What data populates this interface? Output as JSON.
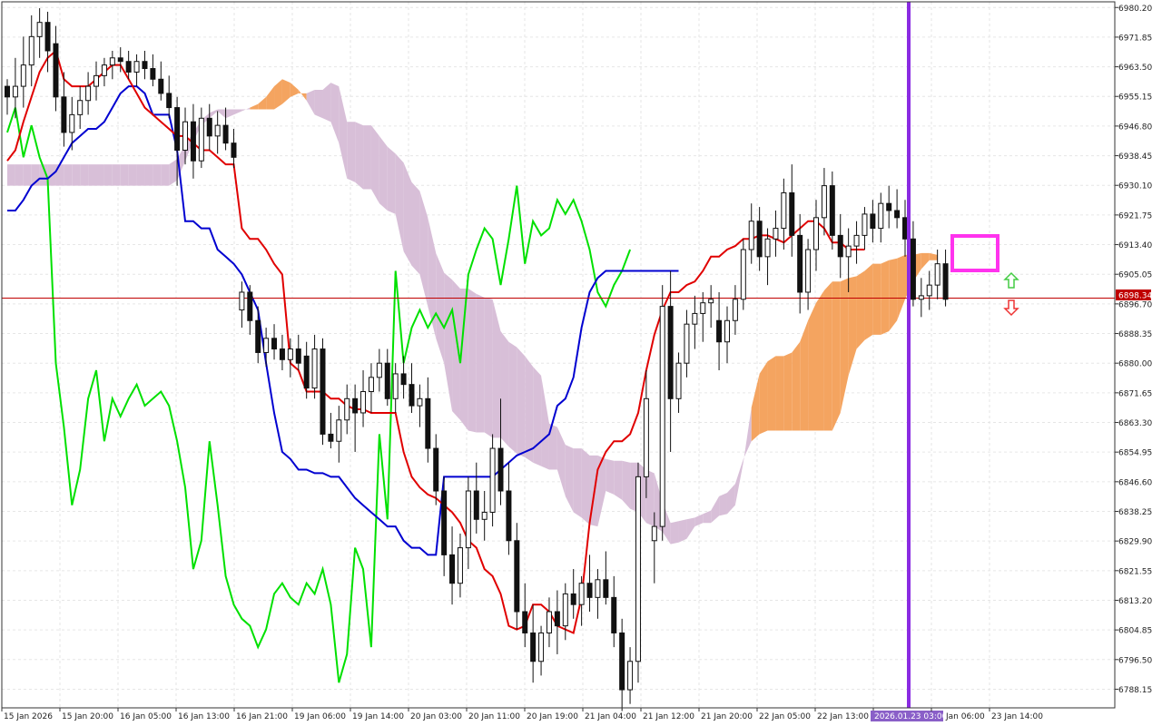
{
  "chart_data": {
    "type": "candlestick",
    "y_axis": {
      "ticks": [
        "6980.20",
        "6971.85",
        "6963.50",
        "6955.15",
        "6946.80",
        "6938.45",
        "6930.10",
        "6921.75",
        "6913.40",
        "6905.05",
        "6896.70",
        "6888.35",
        "6880.00",
        "6871.65",
        "6863.30",
        "6854.95",
        "6846.60",
        "6838.25",
        "6829.90",
        "6821.55",
        "6813.20",
        "6804.85",
        "6796.50",
        "6788.15"
      ],
      "range": [
        6782.9,
        6981.8
      ]
    },
    "x_axis": {
      "labels": [
        "15 Jan 2026",
        "15 Jan 20:00",
        "16 Jan 05:00",
        "16 Jan 13:00",
        "16 Jan 21:00",
        "19 Jan 06:00",
        "19 Jan 14:00",
        "20 Jan 03:00",
        "20 Jan 11:00",
        "20 Jan 19:00",
        "21 Jan 04:00",
        "21 Jan 12:00",
        "21 Jan 20:00",
        "22 Jan 05:00",
        "22 Jan 13:00",
        "2026.01.23 03:00",
        "Jan 06:00",
        "23 Jan 14:00"
      ]
    },
    "current_price": "6898.34",
    "colors": {
      "tenkan": "#e00000",
      "kijun": "#0000d0",
      "chikou": "#00e000",
      "kumo_bull": "#f4a460",
      "kumo_bear": "#d8bfd8",
      "vline": "#8a2be2",
      "highlight_box": "#ff33ee",
      "price_line": "#c00000",
      "arrow_up": "#44cc44",
      "arrow_down": "#ee3333"
    },
    "candles": [
      [
        6958,
        6960,
        6950,
        6955
      ],
      [
        6955,
        6966,
        6949,
        6958
      ],
      [
        6958,
        6972,
        6952,
        6964
      ],
      [
        6964,
        6978,
        6958,
        6972
      ],
      [
        6972,
        6980,
        6966,
        6976
      ],
      [
        6976,
        6979,
        6962,
        6968
      ],
      [
        6970,
        6975,
        6951,
        6955
      ],
      [
        6955,
        6962,
        6941,
        6945
      ],
      [
        6945,
        6955,
        6940,
        6950
      ],
      [
        6950,
        6958,
        6946,
        6954
      ],
      [
        6954,
        6962,
        6950,
        6958
      ],
      [
        6958,
        6965,
        6954,
        6961
      ],
      [
        6961,
        6966,
        6958,
        6964
      ],
      [
        6964,
        6968,
        6960,
        6966
      ],
      [
        6966,
        6969,
        6962,
        6965
      ],
      [
        6965,
        6968,
        6960,
        6962
      ],
      [
        6962,
        6967,
        6958,
        6965
      ],
      [
        6965,
        6968,
        6960,
        6963
      ],
      [
        6963,
        6967,
        6958,
        6960
      ],
      [
        6960,
        6965,
        6954,
        6956
      ],
      [
        6956,
        6961,
        6949,
        6952
      ],
      [
        6952,
        6955,
        6930,
        6940
      ],
      [
        6940,
        6952,
        6936,
        6948
      ],
      [
        6948,
        6953,
        6932,
        6937
      ],
      [
        6937,
        6952,
        6935,
        6949
      ],
      [
        6949,
        6953,
        6940,
        6944
      ],
      [
        6944,
        6951,
        6939,
        6947
      ],
      [
        6947,
        6952,
        6940,
        6942
      ],
      [
        6942,
        6946,
        6935,
        6938
      ],
      [
        6895,
        6903,
        6890,
        6900
      ],
      [
        6900,
        6902,
        6888,
        6892
      ],
      [
        6892,
        6896,
        6880,
        6883
      ],
      [
        6883,
        6890,
        6879,
        6887
      ],
      [
        6887,
        6891,
        6881,
        6884
      ],
      [
        6884,
        6888,
        6878,
        6881
      ],
      [
        6881,
        6887,
        6876,
        6884
      ],
      [
        6884,
        6888,
        6878,
        6880
      ],
      [
        6882,
        6886,
        6870,
        6873
      ],
      [
        6873,
        6888,
        6870,
        6884
      ],
      [
        6884,
        6887,
        6857,
        6860
      ],
      [
        6860,
        6866,
        6856,
        6858
      ],
      [
        6858,
        6868,
        6852,
        6864
      ],
      [
        6864,
        6874,
        6860,
        6870
      ],
      [
        6870,
        6874,
        6855,
        6866
      ],
      [
        6866,
        6878,
        6862,
        6872
      ],
      [
        6872,
        6880,
        6866,
        6876
      ],
      [
        6876,
        6884,
        6872,
        6880
      ],
      [
        6880,
        6884,
        6868,
        6870
      ],
      [
        6870,
        6880,
        6866,
        6877
      ],
      [
        6877,
        6882,
        6870,
        6874
      ],
      [
        6874,
        6880,
        6866,
        6868
      ],
      [
        6868,
        6874,
        6862,
        6870
      ],
      [
        6870,
        6876,
        6852,
        6856
      ],
      [
        6856,
        6860,
        6840,
        6844
      ],
      [
        6844,
        6848,
        6820,
        6826
      ],
      [
        6826,
        6834,
        6812,
        6818
      ],
      [
        6818,
        6832,
        6814,
        6828
      ],
      [
        6828,
        6848,
        6822,
        6844
      ],
      [
        6844,
        6852,
        6832,
        6836
      ],
      [
        6836,
        6844,
        6830,
        6838
      ],
      [
        6838,
        6860,
        6834,
        6856
      ],
      [
        6856,
        6870,
        6840,
        6844
      ],
      [
        6844,
        6852,
        6826,
        6830
      ],
      [
        6830,
        6835,
        6805,
        6810
      ],
      [
        6810,
        6818,
        6800,
        6804
      ],
      [
        6804,
        6812,
        6790,
        6796
      ],
      [
        6796,
        6806,
        6792,
        6804
      ],
      [
        6804,
        6814,
        6800,
        6810
      ],
      [
        6810,
        6816,
        6798,
        6806
      ],
      [
        6806,
        6818,
        6802,
        6815
      ],
      [
        6815,
        6822,
        6808,
        6812
      ],
      [
        6812,
        6820,
        6806,
        6818
      ],
      [
        6818,
        6826,
        6810,
        6814
      ],
      [
        6814,
        6822,
        6808,
        6819
      ],
      [
        6819,
        6827,
        6812,
        6814
      ],
      [
        6814,
        6820,
        6800,
        6804
      ],
      [
        6804,
        6808,
        6782,
        6788
      ],
      [
        6788,
        6800,
        6784,
        6796
      ],
      [
        6796,
        6852,
        6790,
        6848
      ],
      [
        6848,
        6878,
        6842,
        6870
      ],
      [
        6830,
        6838,
        6818,
        6834
      ],
      [
        6834,
        6902,
        6830,
        6896
      ],
      [
        6896,
        6906,
        6855,
        6870
      ],
      [
        6870,
        6883,
        6866,
        6880
      ],
      [
        6880,
        6895,
        6876,
        6891
      ],
      [
        6891,
        6899,
        6884,
        6894
      ],
      [
        6894,
        6900,
        6886,
        6897
      ],
      [
        6897,
        6902,
        6890,
        6898
      ],
      [
        6892,
        6900,
        6878,
        6886
      ],
      [
        6886,
        6896,
        6880,
        6892
      ],
      [
        6892,
        6902,
        6888,
        6898
      ],
      [
        6898,
        6915,
        6895,
        6912
      ],
      [
        6912,
        6925,
        6908,
        6920
      ],
      [
        6920,
        6924,
        6906,
        6910
      ],
      [
        6910,
        6918,
        6902,
        6915
      ],
      [
        6915,
        6923,
        6910,
        6918
      ],
      [
        6918,
        6932,
        6912,
        6928
      ],
      [
        6928,
        6936,
        6910,
        6916
      ],
      [
        6916,
        6922,
        6894,
        6900
      ],
      [
        6900,
        6915,
        6895,
        6912
      ],
      [
        6912,
        6926,
        6906,
        6921
      ],
      [
        6921,
        6935,
        6916,
        6930
      ],
      [
        6930,
        6934,
        6912,
        6916
      ],
      [
        6916,
        6922,
        6904,
        6910
      ],
      [
        6910,
        6918,
        6900,
        6913
      ],
      [
        6913,
        6920,
        6908,
        6916
      ],
      [
        6916,
        6924,
        6912,
        6922
      ],
      [
        6922,
        6926,
        6914,
        6918
      ],
      [
        6918,
        6928,
        6914,
        6925
      ],
      [
        6925,
        6930,
        6918,
        6923
      ],
      [
        6923,
        6929,
        6918,
        6921
      ],
      [
        6921,
        6926,
        6910,
        6915
      ],
      [
        6915,
        6920,
        6896,
        6898
      ],
      [
        6898,
        6904,
        6893,
        6899
      ],
      [
        6899,
        6906,
        6895,
        6902
      ],
      [
        6902,
        6912,
        6898,
        6908
      ],
      [
        6908,
        6912,
        6896,
        6898
      ]
    ],
    "tenkan": [
      6937,
      6940,
      6948,
      6955,
      6962,
      6966,
      6968,
      6960,
      6958,
      6958,
      6958,
      6960,
      6962,
      6964,
      6964,
      6960,
      6956,
      6952,
      6950,
      6948,
      6946,
      6944,
      6944,
      6942,
      6940,
      6940,
      6938,
      6936,
      6936,
      6918,
      6915,
      6915,
      6912,
      6908,
      6905,
      6880,
      6878,
      6872,
      6872,
      6872,
      6870,
      6870,
      6868,
      6867,
      6867,
      6866,
      6866,
      6866,
      6866,
      6855,
      6848,
      6845,
      6843,
      6842,
      6840,
      6838,
      6835,
      6830,
      6828,
      6822,
      6820,
      6815,
      6806,
      6805,
      6806,
      6812,
      6812,
      6810,
      6806,
      6805,
      6804,
      6814,
      6835,
      6850,
      6855,
      6858,
      6858,
      6860,
      6866,
      6878,
      6888,
      6895,
      6900,
      6900,
      6902,
      6903,
      6906,
      6910,
      6910,
      6912,
      6913,
      6915,
      6915,
      6916,
      6916,
      6915,
      6914,
      6916,
      6918,
      6920,
      6920,
      6918,
      6914,
      6914,
      6912,
      6912,
      6912
    ],
    "kijun": [
      6923,
      6923,
      6926,
      6930,
      6932,
      6932,
      6934,
      6938,
      6942,
      6944,
      6946,
      6946,
      6948,
      6952,
      6956,
      6958,
      6958,
      6956,
      6950,
      6950,
      6950,
      6940,
      6920,
      6920,
      6918,
      6918,
      6912,
      6910,
      6908,
      6905,
      6900,
      6895,
      6880,
      6866,
      6855,
      6853,
      6850,
      6850,
      6849,
      6849,
      6848,
      6848,
      6845,
      6842,
      6840,
      6838,
      6836,
      6834,
      6834,
      6830,
      6828,
      6828,
      6826,
      6826,
      6848,
      6848,
      6848,
      6848,
      6848,
      6848,
      6848,
      6850,
      6852,
      6854,
      6855,
      6856,
      6858,
      6860,
      6868,
      6870,
      6876,
      6890,
      6900,
      6904,
      6906,
      6906,
      6906,
      6906,
      6906,
      6906,
      6906,
      6906,
      6906,
      6906
    ],
    "chikou": [
      6945,
      6952,
      6938,
      6947,
      6938,
      6932,
      6880,
      6862,
      6840,
      6850,
      6870,
      6878,
      6858,
      6870,
      6865,
      6870,
      6874,
      6868,
      6870,
      6872,
      6868,
      6858,
      6845,
      6822,
      6830,
      6858,
      6840,
      6820,
      6812,
      6808,
      6806,
      6800,
      6805,
      6815,
      6818,
      6814,
      6812,
      6818,
      6815,
      6822,
      6812,
      6790,
      6798,
      6828,
      6822,
      6800,
      6860,
      6836,
      6906,
      6880,
      6890,
      6895,
      6890,
      6894,
      6890,
      6895,
      6880,
      6905,
      6912,
      6918,
      6915,
      6902,
      6915,
      6930,
      6908,
      6920,
      6916,
      6918,
      6926,
      6922,
      6926,
      6920,
      6912,
      6900,
      6896,
      6902,
      6906,
      6912
    ]
  }
}
